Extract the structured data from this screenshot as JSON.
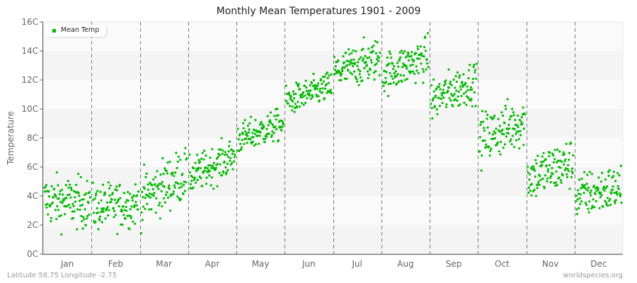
{
  "header": {
    "title": "Monthly Mean Temperatures 1901 - 2009"
  },
  "footer": {
    "location": "Latitude 58.75 Longitude -2.75",
    "source": "worldspecies.org"
  },
  "colors": {
    "point": "#00bb00",
    "band_light": "#fafafa",
    "band_dark": "#f4f4f4",
    "axis": "#666666",
    "divider": "#777777"
  },
  "chart_data": {
    "type": "scatter",
    "title": "Monthly Mean Temperatures 1901 - 2009",
    "xlabel": "",
    "ylabel": "Temperature",
    "ylim": [
      0,
      16
    ],
    "yticks": [
      "0C",
      "2C",
      "4C",
      "6C",
      "8C",
      "10C",
      "12C",
      "14C",
      "16C"
    ],
    "categories": [
      "Jan",
      "Feb",
      "Mar",
      "Apr",
      "May",
      "Jun",
      "Jul",
      "Aug",
      "Sep",
      "Oct",
      "Nov",
      "Dec"
    ],
    "legend": {
      "entries": [
        "Mean Temp"
      ],
      "position": "top-left"
    },
    "grid": {
      "horizontal_bands": true,
      "vertical_dashed_month_dividers": true
    },
    "points_per_month": 109,
    "years": [
      1901,
      2009
    ],
    "series": [
      {
        "name": "Mean Temp",
        "month_stats": [
          {
            "month": "Jan",
            "mean": 3.6,
            "min": 1.0,
            "max": 6.6,
            "trend_start": 3.7,
            "trend_end": 3.5
          },
          {
            "month": "Feb",
            "mean": 3.3,
            "min": 0.1,
            "max": 5.2,
            "trend_start": 3.2,
            "trend_end": 3.5
          },
          {
            "month": "Mar",
            "mean": 4.4,
            "min": 1.4,
            "max": 7.3,
            "trend_start": 3.8,
            "trend_end": 5.6
          },
          {
            "month": "Apr",
            "mean": 6.1,
            "min": 4.1,
            "max": 8.2,
            "trend_start": 5.3,
            "trend_end": 6.8
          },
          {
            "month": "May",
            "mean": 8.5,
            "min": 6.8,
            "max": 10.3,
            "trend_start": 7.9,
            "trend_end": 9.0
          },
          {
            "month": "Jun",
            "mean": 11.2,
            "min": 9.8,
            "max": 13.1,
            "trend_start": 10.5,
            "trend_end": 11.6
          },
          {
            "month": "Jul",
            "mean": 13.0,
            "min": 10.9,
            "max": 15.5,
            "trend_start": 12.5,
            "trend_end": 13.5
          },
          {
            "month": "Aug",
            "mean": 12.9,
            "min": 10.8,
            "max": 15.4,
            "trend_start": 12.4,
            "trend_end": 13.6
          },
          {
            "month": "Sep",
            "mean": 11.1,
            "min": 8.5,
            "max": 13.1,
            "trend_start": 10.6,
            "trend_end": 12.0
          },
          {
            "month": "Oct",
            "mean": 8.5,
            "min": 5.6,
            "max": 11.3,
            "trend_start": 7.9,
            "trend_end": 9.2
          },
          {
            "month": "Nov",
            "mean": 5.8,
            "min": 2.5,
            "max": 8.1,
            "trend_start": 5.3,
            "trend_end": 6.3
          },
          {
            "month": "Dec",
            "mean": 4.2,
            "min": 1.3,
            "max": 6.4,
            "trend_start": 4.0,
            "trend_end": 4.6
          }
        ]
      }
    ]
  }
}
